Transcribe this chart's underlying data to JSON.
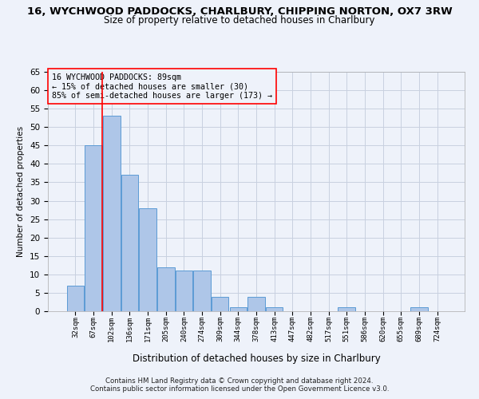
{
  "title1": "16, WYCHWOOD PADDOCKS, CHARLBURY, CHIPPING NORTON, OX7 3RW",
  "title2": "Size of property relative to detached houses in Charlbury",
  "xlabel": "Distribution of detached houses by size in Charlbury",
  "ylabel": "Number of detached properties",
  "footnote1": "Contains HM Land Registry data © Crown copyright and database right 2024.",
  "footnote2": "Contains public sector information licensed under the Open Government Licence v3.0.",
  "bin_labels": [
    "32sqm",
    "67sqm",
    "102sqm",
    "136sqm",
    "171sqm",
    "205sqm",
    "240sqm",
    "274sqm",
    "309sqm",
    "344sqm",
    "378sqm",
    "413sqm",
    "447sqm",
    "482sqm",
    "517sqm",
    "551sqm",
    "586sqm",
    "620sqm",
    "655sqm",
    "689sqm",
    "724sqm"
  ],
  "bar_values": [
    7,
    45,
    53,
    37,
    28,
    12,
    11,
    11,
    4,
    1,
    4,
    1,
    0,
    0,
    0,
    1,
    0,
    0,
    0,
    1,
    0
  ],
  "bar_color": "#aec6e8",
  "bar_edgecolor": "#5b9bd5",
  "ylim": [
    0,
    65
  ],
  "yticks": [
    0,
    5,
    10,
    15,
    20,
    25,
    30,
    35,
    40,
    45,
    50,
    55,
    60,
    65
  ],
  "red_line_bin_index": 1.5,
  "annotation_text": "16 WYCHWOOD PADDOCKS: 89sqm\n← 15% of detached houses are smaller (30)\n85% of semi-detached houses are larger (173) →",
  "grid_color": "#c8d0e0",
  "background_color": "#eef2fa"
}
